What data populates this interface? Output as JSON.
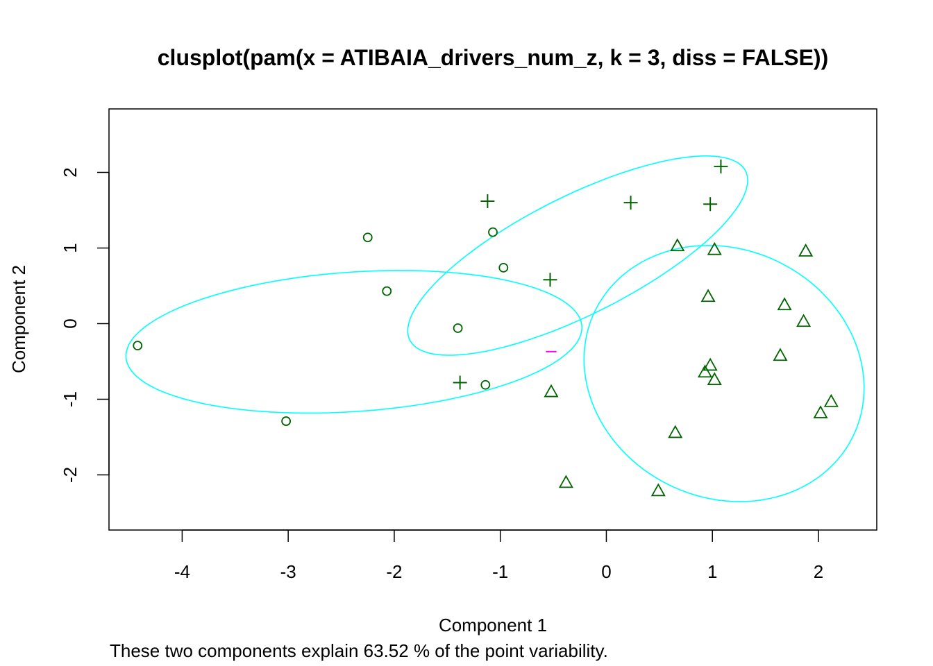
{
  "chart_data": {
    "type": "scatter",
    "title": "clusplot(pam(x = ATIBAIA_drivers_num_z, k = 3, diss = FALSE))",
    "xlabel": "Component 1",
    "ylabel": "Component 2",
    "subtitle": "These two components explain 63.52 % of the point variability.",
    "xlim": [
      -4.69,
      2.55
    ],
    "ylim": [
      -2.73,
      2.84
    ],
    "x_ticks": [
      -4,
      -3,
      -2,
      -1,
      0,
      1,
      2
    ],
    "x_tick_labels": [
      "-4",
      "-3",
      "-2",
      "-1",
      "0",
      "1",
      "2"
    ],
    "y_ticks": [
      -2,
      -1,
      0,
      1,
      2
    ],
    "y_tick_labels": [
      "-2",
      "-1",
      "0",
      "1",
      "2"
    ],
    "grid": false,
    "colors": {
      "points": "#006400",
      "ellipse": "#00FFFF",
      "segment": "#FF00FF",
      "axis": "#000000"
    },
    "series": [
      {
        "marker": "circle",
        "points": [
          [
            -4.42,
            -0.29
          ],
          [
            -3.02,
            -1.29
          ],
          [
            -2.25,
            1.14
          ],
          [
            -2.07,
            0.43
          ],
          [
            -1.4,
            -0.06
          ],
          [
            -1.14,
            -0.81
          ],
          [
            -1.07,
            1.21
          ],
          [
            -0.97,
            0.74
          ]
        ]
      },
      {
        "marker": "plus",
        "points": [
          [
            -1.12,
            1.62
          ],
          [
            1.08,
            2.08
          ],
          [
            0.23,
            1.6
          ],
          [
            0.98,
            1.58
          ],
          [
            -0.53,
            0.58
          ],
          [
            -1.38,
            -0.78
          ]
        ]
      },
      {
        "marker": "triangle",
        "points": [
          [
            0.67,
            1.03
          ],
          [
            1.02,
            0.98
          ],
          [
            1.88,
            0.96
          ],
          [
            0.96,
            0.36
          ],
          [
            1.68,
            0.25
          ],
          [
            1.86,
            0.03
          ],
          [
            1.64,
            -0.42
          ],
          [
            0.98,
            -0.55
          ],
          [
            0.93,
            -0.64
          ],
          [
            1.02,
            -0.74
          ],
          [
            -0.52,
            -0.9
          ],
          [
            2.12,
            -1.03
          ],
          [
            2.02,
            -1.18
          ],
          [
            0.65,
            -1.44
          ],
          [
            -0.38,
            -2.1
          ],
          [
            0.49,
            -2.21
          ]
        ]
      }
    ],
    "ellipses": [
      {
        "cx": -2.38,
        "cy": -0.24,
        "a": 2.16,
        "b": 0.92,
        "angle_deg": 6.1
      },
      {
        "cx": -0.27,
        "cy": 0.9,
        "a": 1.95,
        "b": 0.71,
        "angle_deg": 37.7
      },
      {
        "cx": 1.11,
        "cy": -0.66,
        "a": 1.3,
        "b": 1.71,
        "angle_deg": 12.0
      }
    ],
    "segments": [
      {
        "x1": -0.57,
        "y1": -0.37,
        "x2": -0.47,
        "y2": -0.37
      }
    ]
  }
}
